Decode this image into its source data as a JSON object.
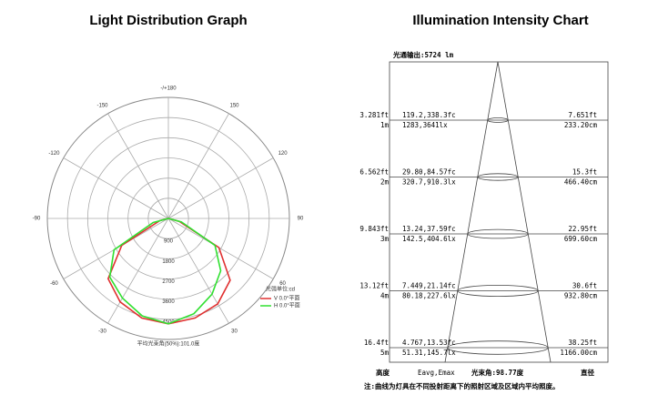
{
  "chart_data": [
    {
      "type": "polar",
      "title": "Light Distribution Graph",
      "x": [
        -90,
        -75,
        -60,
        -45,
        -30,
        -15,
        0,
        15,
        30,
        45,
        60,
        75,
        90
      ],
      "series": [
        {
          "name": "V 0.0°平面",
          "color": "#e03030",
          "values": [
            0,
            400,
            2400,
            3800,
            4300,
            4600,
            4700,
            4600,
            4400,
            3900,
            2600,
            500,
            0
          ]
        },
        {
          "name": "H 0.0°平面",
          "color": "#30e030",
          "values": [
            0,
            700,
            2800,
            3700,
            4100,
            4500,
            4700,
            4400,
            3900,
            3300,
            2400,
            600,
            0
          ]
        }
      ],
      "rlim": [
        0,
        5400
      ],
      "rticks": [
        900,
        1800,
        2700,
        3600,
        4500
      ],
      "xticks": [
        -150,
        -120,
        -90,
        -60,
        -30,
        30,
        60,
        90,
        120,
        150,
        {
          "value": 180,
          "label": "-/+180"
        }
      ],
      "legend_title": "光强单位:cd",
      "annotation": "平均光束角(50%):101.0度"
    },
    {
      "type": "illumination",
      "title": "Illumination Intensity Chart",
      "header": "光通输出:5724 lm",
      "rows": [
        {
          "height_ft": "3.281ft",
          "height_m": "1m",
          "fc": "119.2,338.3fc",
          "lx": "1283,3641lx",
          "diameter_ft": "7.651ft",
          "diameter_cm": "233.20cm"
        },
        {
          "height_ft": "6.562ft",
          "height_m": "2m",
          "fc": "29.80,84.57fc",
          "lx": "320.7,910.3lx",
          "diameter_ft": "15.3ft",
          "diameter_cm": "466.40cm"
        },
        {
          "height_ft": "9.843ft",
          "height_m": "3m",
          "fc": "13.24,37.59fc",
          "lx": "142.5,404.6lx",
          "diameter_ft": "22.95ft",
          "diameter_cm": "699.60cm"
        },
        {
          "height_ft": "13.12ft",
          "height_m": "4m",
          "fc": "7.449,21.14fc",
          "lx": "80.18,227.6lx",
          "diameter_ft": "30.6ft",
          "diameter_cm": "932.80cm"
        },
        {
          "height_ft": "16.4ft",
          "height_m": "5m",
          "fc": "4.767,13.53fc",
          "lx": "51.31,145.7lx",
          "diameter_ft": "38.25ft",
          "diameter_cm": "1166.00cm"
        }
      ],
      "footer": {
        "height": "高度",
        "values": "Eavg,Emax",
        "beam_angle": "光束角:98.77度",
        "diameter": "直径"
      },
      "note": "注:曲线为灯具在不同投射距离下的照射区域及区域内平均照度。"
    }
  ]
}
